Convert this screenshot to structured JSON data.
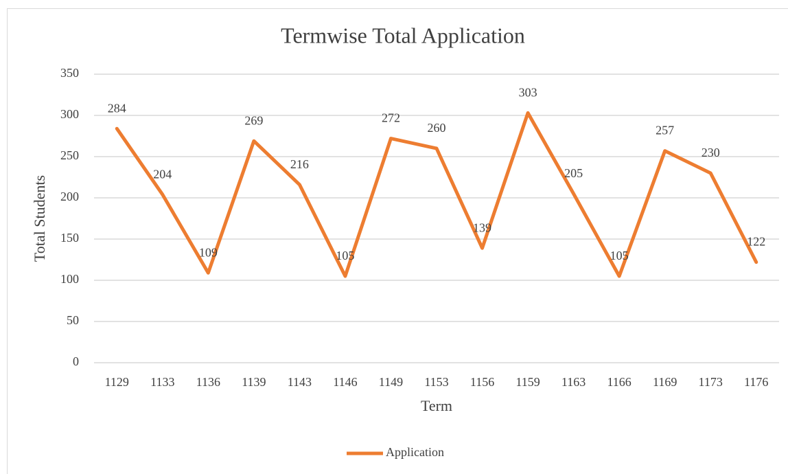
{
  "chart_data": {
    "type": "line",
    "title": "Termwise Total Application",
    "x_label": "Term",
    "y_label": "Total Students",
    "categories": [
      "1129",
      "1133",
      "1136",
      "1139",
      "1143",
      "1146",
      "1149",
      "1153",
      "1156",
      "1159",
      "1163",
      "1166",
      "1169",
      "1173",
      "1176"
    ],
    "series": [
      {
        "name": "Application",
        "color": "#ed7d31",
        "values": [
          284,
          204,
          109,
          269,
          216,
          105,
          272,
          260,
          139,
          303,
          205,
          105,
          257,
          230,
          122
        ]
      }
    ],
    "ylim": [
      0,
      350
    ],
    "yticks": [
      0,
      50,
      100,
      150,
      200,
      250,
      300,
      350
    ],
    "grid": true,
    "legend": "bottom"
  }
}
